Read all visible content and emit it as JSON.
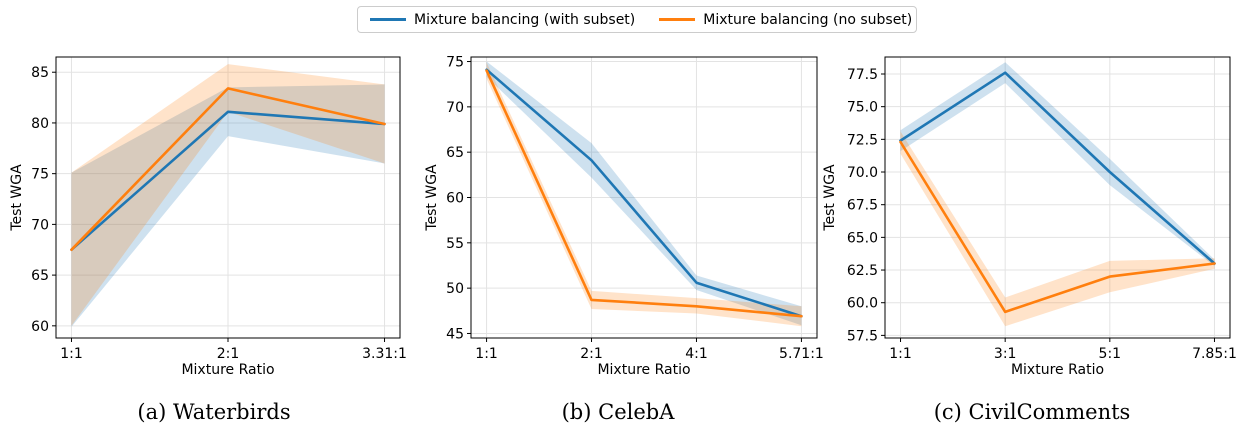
{
  "legend": [
    {
      "name": "Mixture balancing (with subset)",
      "color": "#1f77b4"
    },
    {
      "name": "Mixture balancing (no subset)",
      "color": "#ff7f0e"
    }
  ],
  "colors": {
    "with_subset": "#1f77b4",
    "no_subset": "#ff7f0e"
  },
  "chart_data": [
    {
      "type": "line",
      "caption": "(a) Waterbirds",
      "xlabel": "Mixture Ratio",
      "ylabel": "Test WGA",
      "categories": [
        "1:1",
        "2:1",
        "3.31:1"
      ],
      "ylim": [
        58.8,
        86.5
      ],
      "yticks": [
        "60",
        "65",
        "70",
        "75",
        "80",
        "85"
      ],
      "ytick_values": [
        60,
        65,
        70,
        75,
        80,
        85
      ],
      "grid": true,
      "series": [
        {
          "name": "Mixture balancing (with subset)",
          "values": [
            67.5,
            81.1,
            79.9
          ],
          "lower": [
            59.9,
            78.7,
            76.0
          ],
          "upper": [
            75.1,
            83.5,
            83.8
          ]
        },
        {
          "name": "Mixture balancing (no subset)",
          "values": [
            67.5,
            83.4,
            79.9
          ],
          "lower": [
            60.0,
            81.1,
            76.0
          ],
          "upper": [
            75.1,
            85.8,
            83.8
          ]
        }
      ]
    },
    {
      "type": "line",
      "caption": "(b) CelebA",
      "xlabel": "Mixture Ratio",
      "ylabel": "Test WGA",
      "categories": [
        "1:1",
        "2:1",
        "4:1",
        "5.71:1"
      ],
      "ylim": [
        44.5,
        75.5
      ],
      "yticks": [
        "45",
        "50",
        "55",
        "60",
        "65",
        "70",
        "75"
      ],
      "ytick_values": [
        45,
        50,
        55,
        60,
        65,
        70,
        75
      ],
      "grid": true,
      "series": [
        {
          "name": "Mixture balancing (with subset)",
          "values": [
            74.1,
            64.1,
            50.6,
            46.9
          ],
          "lower": [
            73.3,
            62.2,
            49.8,
            45.9
          ],
          "upper": [
            75.0,
            66.0,
            51.4,
            48.0
          ]
        },
        {
          "name": "Mixture balancing (no subset)",
          "values": [
            74.0,
            48.7,
            48.0,
            46.9
          ],
          "lower": [
            73.1,
            47.7,
            47.2,
            45.8
          ],
          "upper": [
            74.9,
            49.7,
            48.9,
            48.0
          ]
        }
      ]
    },
    {
      "type": "line",
      "caption": "(c) CivilComments",
      "xlabel": "Mixture Ratio",
      "ylabel": "Test WGA",
      "categories": [
        "1:1",
        "3:1",
        "5:1",
        "7.85:1"
      ],
      "ylim": [
        57.3,
        78.8
      ],
      "yticks": [
        "57.5",
        "60.0",
        "62.5",
        "65.0",
        "67.5",
        "70.0",
        "72.5",
        "75.0",
        "77.5"
      ],
      "ytick_values": [
        57.5,
        60.0,
        62.5,
        65.0,
        67.5,
        70.0,
        72.5,
        75.0,
        77.5
      ],
      "grid": true,
      "series": [
        {
          "name": "Mixture balancing (with subset)",
          "values": [
            72.4,
            77.6,
            70.0,
            63.0
          ],
          "lower": [
            71.6,
            76.8,
            69.0,
            62.8
          ],
          "upper": [
            73.2,
            78.4,
            71.0,
            63.3
          ]
        },
        {
          "name": "Mixture balancing (no subset)",
          "values": [
            72.3,
            59.3,
            62.0,
            63.0
          ],
          "lower": [
            71.4,
            58.2,
            60.8,
            62.6
          ],
          "upper": [
            73.1,
            60.4,
            63.2,
            63.4
          ]
        }
      ]
    }
  ]
}
